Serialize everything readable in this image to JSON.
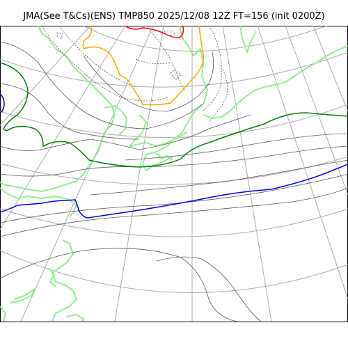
{
  "title": "JMA(See T&Cs)(ENS) TMP850 2025/12/08 12Z FT=156 (init 0200Z)",
  "colors": {
    "coastline": "#90ee90",
    "graticule": "#aaaaaa",
    "isotherm_thin": "#555555",
    "isotherm_dotted": "#555555",
    "isotherm_green": "#008000",
    "isotherm_blue": "#0000dd",
    "isotherm_orange": "#ffa500",
    "isotherm_red": "#ff0000"
  }
}
